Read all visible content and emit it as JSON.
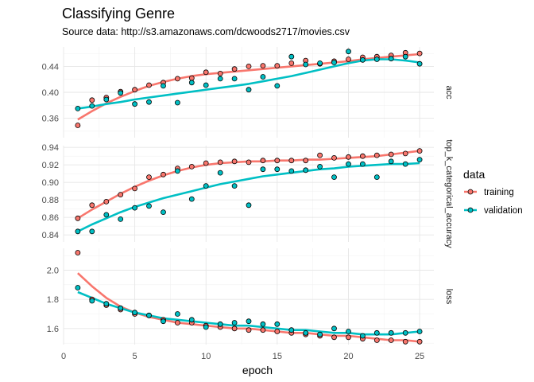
{
  "chart_data": {
    "type": "scatter",
    "title": "Classifying Genre",
    "subtitle": "Source data: http://s3.amazonaws.com/dcwoods2717/movies.csv",
    "xlabel": "epoch",
    "xlim": [
      0,
      26
    ],
    "x_ticks": [
      0,
      5,
      10,
      15,
      20,
      25
    ],
    "grid": true,
    "smoothing": "loess trend line per series",
    "legend": {
      "title": "data",
      "position": "right",
      "entries": [
        {
          "name": "training",
          "color": "#f8766d"
        },
        {
          "name": "validation",
          "color": "#00bfc4"
        }
      ]
    },
    "x": [
      1,
      2,
      3,
      4,
      5,
      6,
      7,
      8,
      9,
      10,
      11,
      12,
      13,
      14,
      15,
      16,
      17,
      18,
      19,
      20,
      21,
      22,
      23,
      24,
      25
    ],
    "panels": [
      {
        "strip_label": "acc",
        "ylim": [
          0.33,
          0.47
        ],
        "y_ticks": [
          0.36,
          0.4,
          0.44
        ],
        "y_tick_labels": [
          "0.36",
          "0.40",
          "0.44"
        ],
        "series": [
          {
            "name": "training",
            "values": [
              0.349,
              0.388,
              0.392,
              0.401,
              0.404,
              0.411,
              0.415,
              0.421,
              0.422,
              0.431,
              0.429,
              0.436,
              0.44,
              0.441,
              0.441,
              0.445,
              0.449,
              0.444,
              0.448,
              0.451,
              0.454,
              0.455,
              0.457,
              0.461,
              0.46
            ],
            "trend": [
              0.358,
              0.371,
              0.383,
              0.393,
              0.402,
              0.41,
              0.416,
              0.421,
              0.425,
              0.428,
              0.43,
              0.432,
              0.434,
              0.436,
              0.438,
              0.44,
              0.442,
              0.444,
              0.446,
              0.448,
              0.451,
              0.453,
              0.455,
              0.457,
              0.459
            ]
          },
          {
            "name": "validation",
            "values": [
              0.375,
              0.379,
              0.389,
              0.399,
              0.382,
              0.385,
              0.41,
              0.384,
              0.415,
              0.411,
              0.421,
              0.421,
              0.404,
              0.424,
              0.41,
              0.455,
              0.443,
              0.445,
              0.446,
              0.463,
              0.45,
              0.451,
              0.452,
              0.455,
              0.444
            ],
            "trend": [
              0.375,
              0.378,
              0.382,
              0.385,
              0.389,
              0.392,
              0.395,
              0.398,
              0.401,
              0.404,
              0.407,
              0.41,
              0.413,
              0.417,
              0.421,
              0.425,
              0.43,
              0.435,
              0.44,
              0.445,
              0.449,
              0.451,
              0.451,
              0.449,
              0.446
            ]
          }
        ]
      },
      {
        "strip_label": "top_k_categorical_accuracy",
        "ylim": [
          0.832,
          0.942
        ],
        "y_ticks": [
          0.84,
          0.86,
          0.88,
          0.9,
          0.92,
          0.94
        ],
        "y_tick_labels": [
          "0.84",
          "0.86",
          "0.88",
          "0.90",
          "0.92",
          "0.94"
        ],
        "series": [
          {
            "name": "training",
            "values": [
              0.859,
              0.874,
              0.878,
              0.886,
              0.893,
              0.906,
              0.909,
              0.916,
              0.918,
              0.922,
              0.923,
              0.924,
              0.923,
              0.925,
              0.925,
              0.925,
              0.925,
              0.931,
              0.928,
              0.929,
              0.93,
              0.931,
              0.932,
              0.933,
              0.936
            ],
            "trend": [
              0.859,
              0.869,
              0.878,
              0.887,
              0.895,
              0.902,
              0.908,
              0.913,
              0.917,
              0.92,
              0.922,
              0.923,
              0.924,
              0.924,
              0.925,
              0.925,
              0.926,
              0.926,
              0.927,
              0.928,
              0.929,
              0.93,
              0.932,
              0.934,
              0.936
            ]
          },
          {
            "name": "validation",
            "values": [
              0.844,
              0.844,
              0.863,
              0.858,
              0.871,
              0.873,
              0.866,
              0.913,
              0.881,
              0.896,
              0.911,
              0.896,
              0.874,
              0.915,
              0.915,
              0.913,
              0.914,
              0.918,
              0.906,
              0.921,
              0.921,
              0.906,
              0.924,
              0.921,
              0.926
            ],
            "trend": [
              0.844,
              0.852,
              0.859,
              0.866,
              0.872,
              0.877,
              0.882,
              0.886,
              0.89,
              0.894,
              0.898,
              0.901,
              0.904,
              0.907,
              0.909,
              0.911,
              0.913,
              0.915,
              0.916,
              0.918,
              0.919,
              0.92,
              0.921,
              0.921,
              0.922
            ]
          }
        ]
      },
      {
        "strip_label": "loss",
        "ylim": [
          1.49,
          2.15
        ],
        "y_ticks": [
          1.6,
          1.8,
          2.0
        ],
        "y_tick_labels": [
          "1.6",
          "1.8",
          "2.0"
        ],
        "series": [
          {
            "name": "training",
            "values": [
              2.12,
              1.8,
              1.76,
              1.73,
              1.7,
              1.69,
              1.66,
              1.64,
              1.64,
              1.62,
              1.61,
              1.6,
              1.59,
              1.59,
              1.58,
              1.57,
              1.56,
              1.55,
              1.54,
              1.54,
              1.53,
              1.52,
              1.52,
              1.51,
              1.51
            ],
            "trend": [
              1.98,
              1.89,
              1.81,
              1.75,
              1.71,
              1.68,
              1.66,
              1.64,
              1.63,
              1.62,
              1.61,
              1.6,
              1.6,
              1.59,
              1.58,
              1.57,
              1.57,
              1.56,
              1.55,
              1.55,
              1.54,
              1.53,
              1.52,
              1.52,
              1.51
            ]
          },
          {
            "name": "validation",
            "values": [
              1.88,
              1.79,
              1.77,
              1.74,
              1.71,
              1.69,
              1.65,
              1.7,
              1.66,
              1.61,
              1.63,
              1.64,
              1.65,
              1.63,
              1.63,
              1.59,
              1.57,
              1.56,
              1.6,
              1.58,
              1.55,
              1.57,
              1.57,
              1.57,
              1.58
            ],
            "trend": [
              1.85,
              1.81,
              1.77,
              1.74,
              1.71,
              1.69,
              1.67,
              1.66,
              1.65,
              1.64,
              1.63,
              1.62,
              1.62,
              1.61,
              1.6,
              1.59,
              1.59,
              1.58,
              1.57,
              1.57,
              1.56,
              1.56,
              1.56,
              1.57,
              1.58
            ]
          }
        ]
      }
    ]
  }
}
